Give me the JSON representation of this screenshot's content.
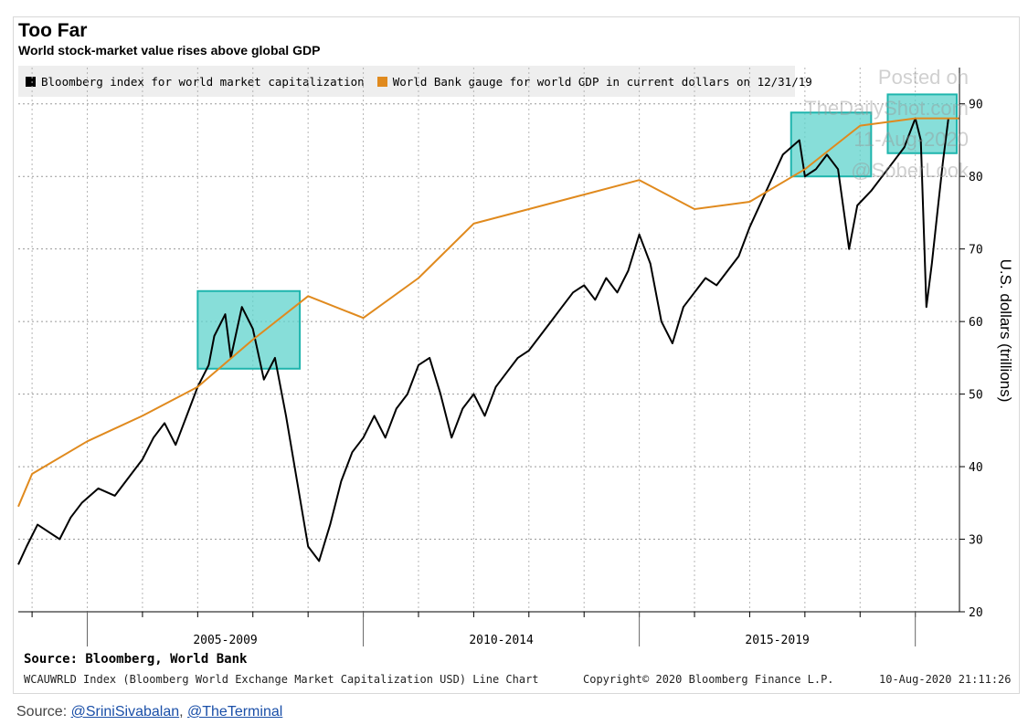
{
  "header": {
    "title": "Too Far",
    "subtitle": "World stock-market value rises above global GDP"
  },
  "watermark": {
    "line1": "Posted on",
    "line2": "TheDailyShot.com",
    "line3": "11-Aug-2020",
    "line4": "@SoberLook"
  },
  "footer": {
    "source": "Source: Bloomberg, World Bank",
    "index_desc": "WCAUWRLD Index (Bloomberg World Exchange Market Capitalization USD) Line Chart",
    "copyright": "Copyright© 2020 Bloomberg Finance L.P.",
    "timestamp": "10-Aug-2020 21:11:26"
  },
  "bottom_source": {
    "prefix": "Source: ",
    "link1": "@SriniSivabalan",
    "sep": ", ",
    "link2": "@TheTerminal"
  },
  "colors": {
    "market_cap": "#000000",
    "gdp": "#e08a1e",
    "highlight_fill": "#5fd3cc",
    "highlight_stroke": "#1fb5ad"
  },
  "chart_data": {
    "type": "line",
    "title": "Too Far",
    "subtitle": "World stock-market value rises above global GDP",
    "ylabel": "U.S. dollars (trillions)",
    "ylim": [
      20,
      95
    ],
    "xlim": [
      2003.75,
      2020.8
    ],
    "y_ticks": [
      20,
      30,
      40,
      50,
      60,
      70,
      80,
      90
    ],
    "x_period_labels": [
      {
        "label": "2005-2009",
        "center": 2007.5
      },
      {
        "label": "2010-2014",
        "center": 2012.5
      },
      {
        "label": "2015-2019",
        "center": 2017.5
      }
    ],
    "x_major_ticks": [
      2005,
      2010,
      2015,
      2020
    ],
    "grid": true,
    "legend_position": "top-left",
    "series": [
      {
        "name": "Bloomberg index for world market capitalization",
        "color": "#000000",
        "x": [
          2003.75,
          2003.9,
          2004.1,
          2004.3,
          2004.5,
          2004.7,
          2004.9,
          2005.2,
          2005.5,
          2005.8,
          2006.0,
          2006.2,
          2006.4,
          2006.6,
          2006.8,
          2007.0,
          2007.2,
          2007.3,
          2007.5,
          2007.6,
          2007.8,
          2008.0,
          2008.2,
          2008.4,
          2008.6,
          2008.8,
          2009.0,
          2009.2,
          2009.4,
          2009.6,
          2009.8,
          2010.0,
          2010.2,
          2010.4,
          2010.6,
          2010.8,
          2011.0,
          2011.2,
          2011.4,
          2011.6,
          2011.8,
          2012.0,
          2012.2,
          2012.4,
          2012.6,
          2012.8,
          2013.0,
          2013.2,
          2013.4,
          2013.6,
          2013.8,
          2014.0,
          2014.2,
          2014.4,
          2014.6,
          2014.8,
          2015.0,
          2015.2,
          2015.4,
          2015.6,
          2015.8,
          2016.0,
          2016.2,
          2016.4,
          2016.6,
          2016.8,
          2017.0,
          2017.3,
          2017.6,
          2017.9,
          2018.0,
          2018.2,
          2018.4,
          2018.6,
          2018.8,
          2018.95,
          2019.2,
          2019.4,
          2019.6,
          2019.8,
          2020.0,
          2020.1,
          2020.2,
          2020.3,
          2020.4,
          2020.5,
          2020.6
        ],
        "values": [
          26.5,
          29,
          32,
          31,
          30,
          33,
          35,
          37,
          36,
          39,
          41,
          44,
          46,
          43,
          47,
          51,
          54,
          58,
          61,
          55,
          62,
          59,
          52,
          55,
          47,
          38,
          29,
          27,
          32,
          38,
          42,
          44,
          47,
          44,
          48,
          50,
          54,
          55,
          50,
          44,
          48,
          50,
          47,
          51,
          53,
          55,
          56,
          58,
          60,
          62,
          64,
          65,
          63,
          66,
          64,
          67,
          72,
          68,
          60,
          57,
          62,
          64,
          66,
          65,
          67,
          69,
          73,
          78,
          83,
          85,
          80,
          81,
          83,
          81,
          70,
          76,
          78,
          80,
          82,
          84,
          88,
          85,
          62,
          68,
          75,
          82,
          88
        ]
      },
      {
        "name": "World Bank gauge for world GDP in current dollars on 12/31/19",
        "color": "#e08a1e",
        "x": [
          2003.75,
          2004.0,
          2005.0,
          2006.0,
          2007.0,
          2008.0,
          2009.0,
          2010.0,
          2011.0,
          2012.0,
          2013.0,
          2014.0,
          2015.0,
          2016.0,
          2017.0,
          2018.0,
          2019.0,
          2020.0,
          2020.8
        ],
        "values": [
          34.5,
          39,
          43.5,
          47,
          51,
          57.5,
          63.5,
          60.5,
          66,
          73.5,
          75.5,
          77.5,
          79.5,
          75.5,
          76.5,
          81,
          87,
          88,
          88
        ]
      }
    ],
    "highlight_boxes": [
      {
        "x0": 2007.0,
        "x1": 2008.85,
        "y0": 53.5,
        "y1": 64.2
      },
      {
        "x0": 2017.75,
        "x1": 2019.2,
        "y0": 80.0,
        "y1": 88.8
      },
      {
        "x0": 2019.5,
        "x1": 2020.75,
        "y0": 83.2,
        "y1": 91.3
      }
    ]
  }
}
